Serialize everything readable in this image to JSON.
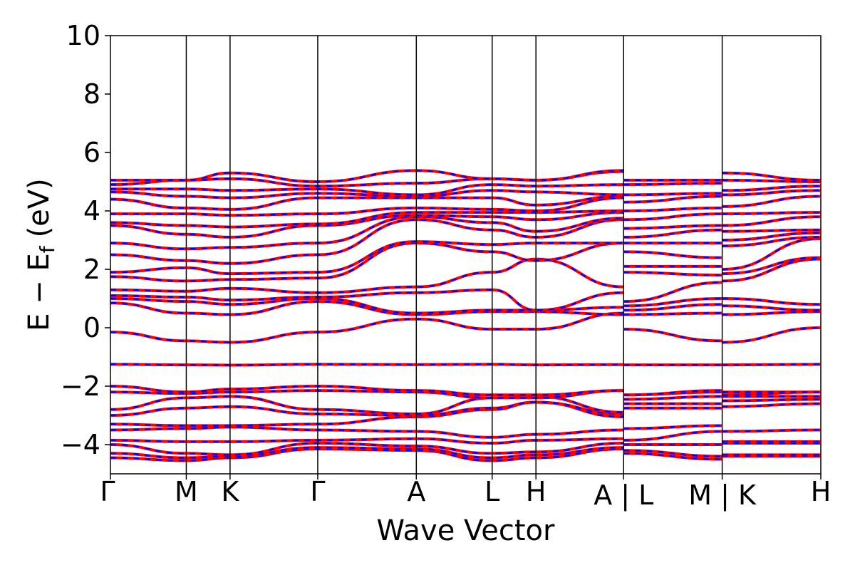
{
  "chart_data": {
    "type": "line",
    "title": "",
    "xlabel": "Wave Vector",
    "ylabel": "E − E",
    "ylabel_subscript": "f",
    "ylabel_unit": "(eV)",
    "ylim": [
      -5,
      10
    ],
    "yticks": [
      -4,
      -2,
      0,
      2,
      4,
      6,
      8,
      10
    ],
    "ytick_labels": [
      "−4",
      "−2",
      "0",
      "2",
      "4",
      "6",
      "8",
      "10"
    ],
    "kpath": [
      {
        "label": "Γ",
        "x": 0.0
      },
      {
        "label": "M",
        "x": 0.577
      },
      {
        "label": "K",
        "x": 0.91
      },
      {
        "label": "Γ",
        "x": 1.577
      },
      {
        "label": "A",
        "x": 2.327
      },
      {
        "label": "L",
        "x": 2.904
      },
      {
        "label": "H",
        "x": 3.237
      },
      {
        "label": "A | L",
        "x": 3.904
      },
      {
        "label": "M | K",
        "x": 4.654
      },
      {
        "label": "H",
        "x": 5.404
      }
    ],
    "segment_breaks": [
      3.904,
      4.654
    ],
    "xlim": [
      0,
      5.404
    ],
    "grid": false,
    "colors": {
      "spin_up": "#ff0000",
      "spin_down": "#0000ff"
    },
    "bands_at_nodes": [
      [
        -4.45,
        -4.55,
        -4.45,
        -4.15,
        -4.2,
        -4.55,
        -4.45,
        -4.15,
        -4.3,
        -4.5,
        -4.4,
        -4.4
      ],
      [
        -4.3,
        -4.45,
        -4.4,
        -4.1,
        -4.15,
        -4.45,
        -4.35,
        -4.1,
        -4.2,
        -4.4,
        -4.35,
        -4.35
      ],
      [
        -4.0,
        -4.3,
        -4.35,
        -3.95,
        -4.05,
        -4.3,
        -4.25,
        -3.95,
        -4.0,
        -4.0,
        -3.95,
        -3.95
      ],
      [
        -3.85,
        -3.9,
        -3.9,
        -3.85,
        -3.8,
        -3.95,
        -3.85,
        -3.8,
        -3.85,
        -3.55,
        -3.9,
        -3.9
      ],
      [
        -3.5,
        -3.45,
        -3.4,
        -3.5,
        -3.55,
        -3.75,
        -3.65,
        -3.5,
        -3.45,
        -3.35,
        -3.55,
        -3.5
      ],
      [
        -3.3,
        -3.35,
        -3.35,
        -3.3,
        -3.05,
        -2.8,
        -2.55,
        -3.05,
        -2.75,
        -2.75,
        -2.7,
        -2.6
      ],
      [
        -3.0,
        -2.75,
        -2.7,
        -2.95,
        -3.0,
        -2.75,
        -2.55,
        -2.95,
        -2.6,
        -2.6,
        -2.5,
        -2.45
      ],
      [
        -2.8,
        -2.4,
        -2.35,
        -2.8,
        -2.95,
        -2.4,
        -2.35,
        -2.9,
        -2.45,
        -2.35,
        -2.35,
        -2.35
      ],
      [
        -2.2,
        -2.25,
        -2.2,
        -2.15,
        -2.2,
        -2.4,
        -2.4,
        -2.15,
        -2.3,
        -2.2,
        -2.3,
        -2.2
      ],
      [
        -2.0,
        -2.2,
        -2.1,
        -2.0,
        -2.15,
        -2.3,
        -2.3,
        -2.15,
        -2.3,
        -2.15,
        -2.2,
        -2.2
      ],
      [
        -1.25,
        -1.27,
        -1.28,
        -1.25,
        -1.26,
        -1.25,
        -1.27,
        -1.26,
        -1.27,
        -1.27,
        -1.27,
        -1.25
      ],
      [
        -0.15,
        -0.45,
        -0.5,
        -0.15,
        0.3,
        -0.05,
        -0.05,
        0.5,
        -0.05,
        -0.45,
        -0.5,
        0.0
      ],
      [
        0.85,
        0.5,
        0.45,
        0.9,
        0.45,
        0.55,
        0.55,
        0.45,
        0.45,
        0.5,
        0.45,
        0.55
      ],
      [
        1.0,
        0.9,
        0.8,
        1.0,
        0.5,
        0.6,
        0.6,
        0.7,
        0.6,
        0.8,
        0.75,
        0.6
      ],
      [
        1.1,
        1.05,
        0.95,
        1.05,
        1.2,
        1.3,
        0.6,
        1.2,
        0.75,
        1.0,
        1.0,
        0.8
      ],
      [
        1.3,
        1.25,
        1.35,
        1.2,
        1.4,
        1.9,
        2.35,
        1.4,
        0.9,
        1.55,
        1.6,
        2.35
      ],
      [
        1.75,
        1.6,
        1.65,
        1.7,
        2.9,
        2.6,
        2.3,
        2.9,
        1.9,
        1.8,
        1.85,
        2.4
      ],
      [
        1.9,
        2.05,
        1.85,
        1.9,
        2.95,
        2.85,
        2.9,
        2.9,
        2.1,
        2.1,
        2.0,
        3.05
      ],
      [
        2.5,
        2.3,
        2.2,
        2.5,
        3.7,
        3.35,
        3.1,
        3.7,
        2.6,
        2.4,
        2.8,
        3.1
      ],
      [
        2.9,
        2.7,
        2.75,
        2.9,
        3.8,
        3.6,
        3.3,
        3.75,
        2.9,
        2.9,
        3.0,
        3.25
      ],
      [
        3.5,
        3.2,
        3.1,
        3.5,
        3.85,
        3.8,
        3.7,
        3.95,
        3.1,
        3.35,
        3.3,
        3.35
      ],
      [
        3.6,
        3.5,
        3.45,
        3.55,
        3.95,
        3.95,
        3.95,
        4.0,
        3.4,
        3.5,
        3.5,
        3.8
      ],
      [
        3.9,
        3.9,
        3.85,
        3.9,
        4.1,
        4.05,
        4.0,
        4.45,
        3.7,
        3.9,
        3.9,
        3.95
      ],
      [
        4.4,
        4.1,
        4.05,
        4.45,
        4.45,
        4.45,
        4.2,
        4.5,
        4.0,
        4.1,
        4.15,
        4.5
      ],
      [
        4.65,
        4.5,
        4.45,
        4.6,
        4.5,
        4.7,
        4.65,
        4.55,
        4.3,
        4.5,
        4.55,
        4.7
      ],
      [
        4.75,
        4.75,
        4.7,
        4.75,
        4.55,
        4.9,
        4.85,
        4.9,
        4.55,
        4.6,
        4.7,
        4.85
      ],
      [
        4.9,
        5.05,
        5.1,
        4.85,
        4.95,
        5.1,
        5.05,
        5.35,
        4.9,
        4.95,
        5.05,
        5.0
      ],
      [
        5.05,
        5.05,
        5.3,
        5.0,
        5.38,
        5.1,
        5.05,
        5.38,
        5.05,
        5.05,
        5.3,
        5.05
      ]
    ]
  }
}
